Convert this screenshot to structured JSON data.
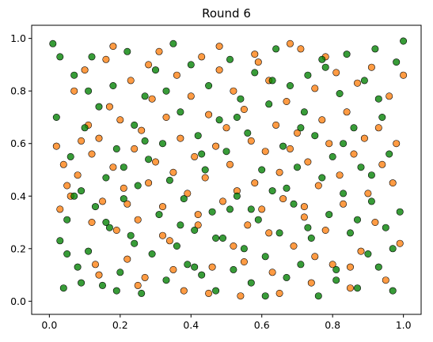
{
  "chart_data": {
    "type": "scatter",
    "title": "Round 6",
    "xlabel": "",
    "ylabel": "",
    "xlim": [
      -0.05,
      1.05
    ],
    "ylim": [
      -0.05,
      1.05
    ],
    "xticks": [
      0.0,
      0.2,
      0.4,
      0.6,
      0.8,
      1.0
    ],
    "xtick_labels": [
      "0.0",
      "0.2",
      "0.4",
      "0.6",
      "0.8",
      "1.0"
    ],
    "yticks": [
      0.0,
      0.2,
      0.4,
      0.6,
      0.8,
      1.0
    ],
    "ytick_labels": [
      "0.0",
      "0.2",
      "0.4",
      "0.6",
      "0.8",
      "1.0"
    ],
    "grid": false,
    "legend": false,
    "series": [
      {
        "color": "#ff7f0e",
        "points": [
          [
            0.02,
            0.59
          ],
          [
            0.03,
            0.35
          ],
          [
            0.04,
            0.52
          ],
          [
            0.05,
            0.44
          ],
          [
            0.06,
            0.4
          ],
          [
            0.07,
            0.8
          ],
          [
            0.08,
            0.48
          ],
          [
            0.09,
            0.61
          ],
          [
            0.1,
            0.88
          ],
          [
            0.11,
            0.67
          ],
          [
            0.12,
            0.56
          ],
          [
            0.13,
            0.14
          ],
          [
            0.14,
            0.62
          ],
          [
            0.15,
            0.38
          ],
          [
            0.16,
            0.92
          ],
          [
            0.17,
            0.74
          ],
          [
            0.18,
            0.51
          ],
          [
            0.19,
            0.27
          ],
          [
            0.2,
            0.69
          ],
          [
            0.21,
            0.43
          ],
          [
            0.22,
            0.16
          ],
          [
            0.23,
            0.84
          ],
          [
            0.24,
            0.58
          ],
          [
            0.25,
            0.31
          ],
          [
            0.26,
            0.65
          ],
          [
            0.27,
            0.09
          ],
          [
            0.28,
            0.45
          ],
          [
            0.29,
            0.77
          ],
          [
            0.3,
            0.53
          ],
          [
            0.31,
            0.95
          ],
          [
            0.32,
            0.36
          ],
          [
            0.33,
            0.7
          ],
          [
            0.34,
            0.23
          ],
          [
            0.35,
            0.49
          ],
          [
            0.36,
            0.86
          ],
          [
            0.37,
            0.62
          ],
          [
            0.38,
            0.04
          ],
          [
            0.39,
            0.41
          ],
          [
            0.4,
            0.78
          ],
          [
            0.41,
            0.55
          ],
          [
            0.42,
            0.33
          ],
          [
            0.43,
            0.93
          ],
          [
            0.44,
            0.47
          ],
          [
            0.45,
            0.71
          ],
          [
            0.46,
            0.13
          ],
          [
            0.47,
            0.59
          ],
          [
            0.48,
            0.88
          ],
          [
            0.49,
            0.38
          ],
          [
            0.5,
            0.66
          ],
          [
            0.51,
            0.52
          ],
          [
            0.52,
            0.8
          ],
          [
            0.53,
            0.42
          ],
          [
            0.54,
            0.02
          ],
          [
            0.55,
            0.73
          ],
          [
            0.56,
            0.29
          ],
          [
            0.57,
            0.61
          ],
          [
            0.58,
            0.45
          ],
          [
            0.59,
            0.91
          ],
          [
            0.6,
            0.35
          ],
          [
            0.61,
            0.57
          ],
          [
            0.62,
            0.84
          ],
          [
            0.63,
            0.11
          ],
          [
            0.64,
            0.67
          ],
          [
            0.65,
            0.49
          ],
          [
            0.66,
            0.39
          ],
          [
            0.67,
            0.76
          ],
          [
            0.68,
            0.58
          ],
          [
            0.69,
            0.21
          ],
          [
            0.7,
            0.64
          ],
          [
            0.71,
            0.96
          ],
          [
            0.72,
            0.32
          ],
          [
            0.73,
            0.53
          ],
          [
            0.74,
            0.07
          ],
          [
            0.75,
            0.81
          ],
          [
            0.76,
            0.44
          ],
          [
            0.77,
            0.69
          ],
          [
            0.78,
            0.27
          ],
          [
            0.79,
            0.6
          ],
          [
            0.8,
            0.14
          ],
          [
            0.81,
            0.87
          ],
          [
            0.82,
            0.48
          ],
          [
            0.83,
            0.37
          ],
          [
            0.84,
            0.72
          ],
          [
            0.85,
            0.05
          ],
          [
            0.86,
            0.56
          ],
          [
            0.87,
            0.83
          ],
          [
            0.88,
            0.19
          ],
          [
            0.89,
            0.62
          ],
          [
            0.9,
            0.41
          ],
          [
            0.91,
            0.89
          ],
          [
            0.92,
            0.3
          ],
          [
            0.93,
            0.66
          ],
          [
            0.94,
            0.52
          ],
          [
            0.95,
            0.08
          ],
          [
            0.96,
            0.78
          ],
          [
            0.97,
            0.45
          ],
          [
            0.98,
            0.6
          ],
          [
            0.99,
            0.22
          ],
          [
            1.0,
            0.86
          ],
          [
            0.14,
            0.1
          ],
          [
            0.25,
            0.06
          ],
          [
            0.35,
            0.12
          ],
          [
            0.45,
            0.03
          ],
          [
            0.55,
            0.15
          ],
          [
            0.65,
            0.03
          ],
          [
            0.75,
            0.17
          ],
          [
            0.85,
            0.13
          ],
          [
            0.18,
            0.97
          ],
          [
            0.28,
            0.9
          ],
          [
            0.48,
            0.97
          ],
          [
            0.58,
            0.94
          ],
          [
            0.68,
            0.98
          ],
          [
            0.78,
            0.93
          ],
          [
            0.12,
            0.3
          ],
          [
            0.22,
            0.37
          ],
          [
            0.32,
            0.25
          ],
          [
            0.42,
            0.29
          ],
          [
            0.52,
            0.21
          ],
          [
            0.62,
            0.26
          ],
          [
            0.72,
            0.36
          ]
        ]
      },
      {
        "color": "#008000",
        "points": [
          [
            0.01,
            0.98
          ],
          [
            0.02,
            0.7
          ],
          [
            0.03,
            0.23
          ],
          [
            0.04,
            0.05
          ],
          [
            0.05,
            0.31
          ],
          [
            0.06,
            0.55
          ],
          [
            0.07,
            0.86
          ],
          [
            0.08,
            0.13
          ],
          [
            0.09,
            0.42
          ],
          [
            0.1,
            0.66
          ],
          [
            0.11,
            0.19
          ],
          [
            0.12,
            0.93
          ],
          [
            0.13,
            0.36
          ],
          [
            0.14,
            0.74
          ],
          [
            0.15,
            0.06
          ],
          [
            0.16,
            0.47
          ],
          [
            0.17,
            0.28
          ],
          [
            0.18,
            0.82
          ],
          [
            0.19,
            0.58
          ],
          [
            0.2,
            0.11
          ],
          [
            0.21,
            0.39
          ],
          [
            0.22,
            0.95
          ],
          [
            0.23,
            0.25
          ],
          [
            0.24,
            0.67
          ],
          [
            0.25,
            0.44
          ],
          [
            0.26,
            0.03
          ],
          [
            0.27,
            0.78
          ],
          [
            0.28,
            0.54
          ],
          [
            0.29,
            0.18
          ],
          [
            0.3,
            0.88
          ],
          [
            0.31,
            0.33
          ],
          [
            0.32,
            0.6
          ],
          [
            0.33,
            0.08
          ],
          [
            0.34,
            0.46
          ],
          [
            0.35,
            0.98
          ],
          [
            0.36,
            0.21
          ],
          [
            0.37,
            0.72
          ],
          [
            0.38,
            0.39
          ],
          [
            0.39,
            0.14
          ],
          [
            0.4,
            0.9
          ],
          [
            0.41,
            0.27
          ],
          [
            0.42,
            0.63
          ],
          [
            0.43,
            0.1
          ],
          [
            0.44,
            0.5
          ],
          [
            0.45,
            0.82
          ],
          [
            0.46,
            0.34
          ],
          [
            0.47,
            0.04
          ],
          [
            0.48,
            0.69
          ],
          [
            0.49,
            0.24
          ],
          [
            0.5,
            0.57
          ],
          [
            0.51,
            0.92
          ],
          [
            0.52,
            0.12
          ],
          [
            0.53,
            0.4
          ],
          [
            0.54,
            0.77
          ],
          [
            0.55,
            0.2
          ],
          [
            0.56,
            0.64
          ],
          [
            0.57,
            0.07
          ],
          [
            0.58,
            0.87
          ],
          [
            0.59,
            0.31
          ],
          [
            0.6,
            0.5
          ],
          [
            0.61,
            0.17
          ],
          [
            0.62,
            0.75
          ],
          [
            0.63,
            0.42
          ],
          [
            0.64,
            0.96
          ],
          [
            0.65,
            0.26
          ],
          [
            0.66,
            0.59
          ],
          [
            0.67,
            0.09
          ],
          [
            0.68,
            0.82
          ],
          [
            0.69,
            0.37
          ],
          [
            0.7,
            0.51
          ],
          [
            0.71,
            0.14
          ],
          [
            0.72,
            0.72
          ],
          [
            0.73,
            0.86
          ],
          [
            0.74,
            0.24
          ],
          [
            0.75,
            0.63
          ],
          [
            0.76,
            0.02
          ],
          [
            0.77,
            0.47
          ],
          [
            0.78,
            0.89
          ],
          [
            0.79,
            0.33
          ],
          [
            0.8,
            0.55
          ],
          [
            0.81,
            0.12
          ],
          [
            0.82,
            0.79
          ],
          [
            0.83,
            0.41
          ],
          [
            0.84,
            0.94
          ],
          [
            0.85,
            0.26
          ],
          [
            0.86,
            0.66
          ],
          [
            0.87,
            0.05
          ],
          [
            0.88,
            0.51
          ],
          [
            0.89,
            0.84
          ],
          [
            0.9,
            0.18
          ],
          [
            0.91,
            0.38
          ],
          [
            0.92,
            0.96
          ],
          [
            0.93,
            0.13
          ],
          [
            0.94,
            0.7
          ],
          [
            0.95,
            0.28
          ],
          [
            0.96,
            0.56
          ],
          [
            0.97,
            0.04
          ],
          [
            0.98,
            0.91
          ],
          [
            0.99,
            0.34
          ],
          [
            1.0,
            0.99
          ],
          [
            0.03,
            0.93
          ],
          [
            0.05,
            0.18
          ],
          [
            0.07,
            0.4
          ],
          [
            0.09,
            0.07
          ],
          [
            0.11,
            0.8
          ],
          [
            0.16,
            0.3
          ],
          [
            0.19,
            0.04
          ],
          [
            0.24,
            0.22
          ],
          [
            0.27,
            0.61
          ],
          [
            0.33,
            0.8
          ],
          [
            0.37,
            0.29
          ],
          [
            0.43,
            0.56
          ],
          [
            0.47,
            0.24
          ],
          [
            0.53,
            0.7
          ],
          [
            0.57,
            0.35
          ],
          [
            0.63,
            0.84
          ],
          [
            0.67,
            0.43
          ],
          [
            0.73,
            0.28
          ],
          [
            0.77,
            0.92
          ],
          [
            0.83,
            0.6
          ],
          [
            0.87,
            0.31
          ],
          [
            0.93,
            0.77
          ],
          [
            0.97,
            0.2
          ],
          [
            0.41,
            0.13
          ],
          [
            0.61,
            0.02
          ],
          [
            0.81,
            0.08
          ],
          [
            0.21,
            0.51
          ],
          [
            0.51,
            0.35
          ],
          [
            0.71,
            0.66
          ],
          [
            0.91,
            0.48
          ]
        ]
      }
    ]
  }
}
